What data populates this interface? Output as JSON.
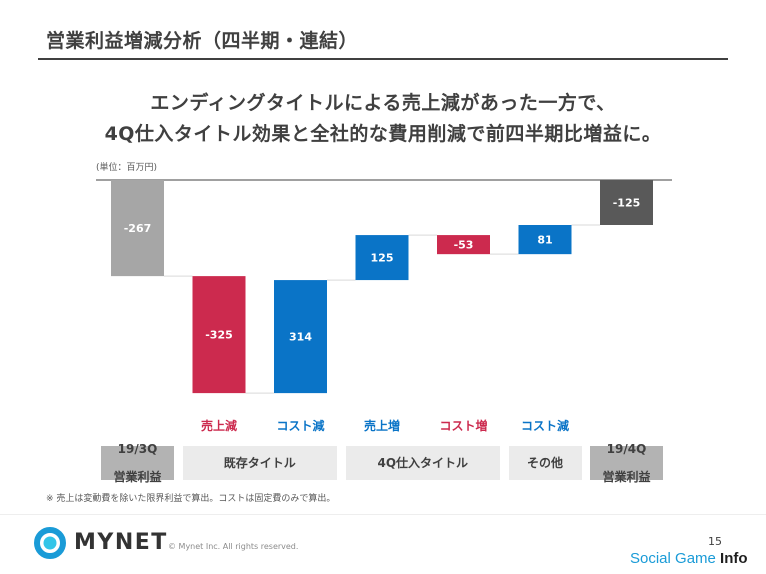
{
  "slide": {
    "title": "営業利益増減分析（四半期・連結）",
    "headline_line1": "エンディングタイトルによる売上減があった一方で、",
    "headline_line2": "4Q仕入タイトル効果と全社的な費用削減で前四半期比増益に。",
    "footnote": "※ 売上は変動費を除いた限界利益で算出。コストは固定費のみで算出。",
    "copyright": "© Mynet Inc. All rights reserved.",
    "logo_text": "MYNET",
    "page_number": "15",
    "watermark_part1": "Social Game ",
    "watermark_part2": "Info"
  },
  "colors": {
    "total": "#a6a6a6",
    "total_end": "#595959",
    "decrease": "#cc2a4e",
    "increase": "#0a74c7",
    "connector": "#d9d9d9",
    "logo_blue": "#1a9bd7",
    "logo_cyan": "#33c5e8"
  },
  "chart_data": {
    "type": "waterfall",
    "unit_label": "(単位：百万円)",
    "bars": [
      {
        "category_label": "",
        "value": -267,
        "label": "-267",
        "kind": "total"
      },
      {
        "category_label": "売上減",
        "value": -325,
        "label": "-325",
        "kind": "decrease"
      },
      {
        "category_label": "コスト減",
        "value": 314,
        "label": "314",
        "kind": "increase"
      },
      {
        "category_label": "売上増",
        "value": 125,
        "label": "125",
        "kind": "increase"
      },
      {
        "category_label": "コスト増",
        "value": -53,
        "label": "-53",
        "kind": "decrease"
      },
      {
        "category_label": "コスト減",
        "value": 81,
        "label": "81",
        "kind": "increase"
      },
      {
        "category_label": "",
        "value": -125,
        "label": "-125",
        "kind": "total_end"
      }
    ],
    "groups": [
      {
        "label": "19/3Q\n営業利益",
        "span": [
          0,
          0
        ],
        "style": "dark"
      },
      {
        "label": "既存タイトル",
        "span": [
          1,
          2
        ],
        "style": "light"
      },
      {
        "label": "4Q仕入タイトル",
        "span": [
          3,
          4
        ],
        "style": "light"
      },
      {
        "label": "その他",
        "span": [
          5,
          5
        ],
        "style": "light"
      },
      {
        "label": "19/4Q\n営業利益",
        "span": [
          6,
          6
        ],
        "style": "dark"
      }
    ]
  }
}
